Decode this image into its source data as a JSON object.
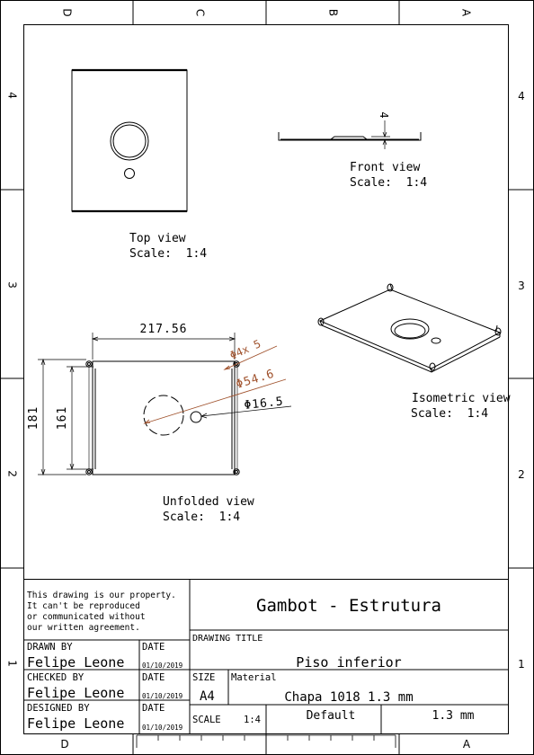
{
  "zones": {
    "top": [
      "D",
      "C",
      "B",
      "A"
    ],
    "bottom": [
      "D",
      "A"
    ],
    "left": [
      "4",
      "3",
      "2",
      "1"
    ],
    "right": [
      "4",
      "3",
      "2",
      "1"
    ]
  },
  "views": {
    "top": {
      "name": "Top view",
      "scale": "Scale:  1:4"
    },
    "front": {
      "name": "Front view",
      "scale": "Scale:  1:4",
      "dim_height": "4"
    },
    "isometric": {
      "name": "Isometric view",
      "scale": "Scale:  1:4"
    },
    "unfolded": {
      "name": "Unfolded view",
      "scale": "Scale:  1:4",
      "dims": {
        "width": "217.56",
        "height_outer": "181",
        "height_inner": "161",
        "corner_holes": "Φ4x 5",
        "large_hole": "Φ54.6",
        "small_hole": "Φ16.5"
      }
    }
  },
  "title_block": {
    "notice": [
      "This drawing is our property.",
      "It can't be reproduced",
      "or communicated without",
      "our written agreement."
    ],
    "project": "Gambot - Estrutura",
    "drawing_title_label": "DRAWING TITLE",
    "drawing_title": "Piso inferior",
    "drawn_by_label": "DRAWN BY",
    "checked_by_label": "CHECKED BY",
    "designed_by_label": "DESIGNED BY",
    "date_label": "DATE",
    "drawn_by": "Felipe Leone",
    "checked_by": "Felipe Leone",
    "designed_by": "Felipe Leone",
    "drawn_date": "01/10/2019",
    "checked_date": "01/10/2019",
    "designed_date": "01/10/2019",
    "size_label": "SIZE",
    "size": "A4",
    "material_label": "Material",
    "material": "Chapa 1018 1.3 mm",
    "scale_label": "SCALE",
    "scale": "1:4",
    "finish": "Default",
    "thickness": "1.3 mm"
  },
  "colors": {
    "line": "#000000",
    "dimension_accent": "#a0522d"
  }
}
